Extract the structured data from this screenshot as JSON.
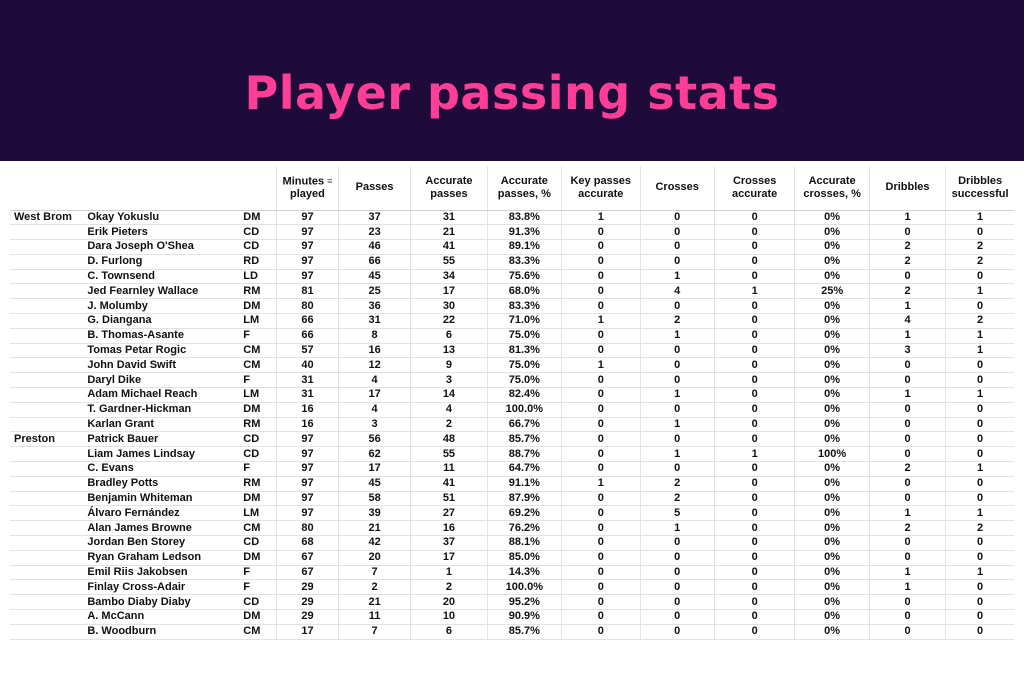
{
  "title": "Player passing stats",
  "columns": [
    {
      "key": "minutes",
      "label_lines": [
        "Minutes",
        "played"
      ],
      "icon": "sort-icon"
    },
    {
      "key": "passes",
      "label_lines": [
        "Passes"
      ]
    },
    {
      "key": "accurate_passes",
      "label_lines": [
        "Accurate",
        "passes"
      ]
    },
    {
      "key": "accurate_passes_pct",
      "label_lines": [
        "Accurate",
        "passes, %"
      ]
    },
    {
      "key": "key_passes_accurate",
      "label_lines": [
        "Key passes",
        "accurate"
      ]
    },
    {
      "key": "crosses",
      "label_lines": [
        "Crosses"
      ]
    },
    {
      "key": "crosses_accurate",
      "label_lines": [
        "Crosses",
        "accurate"
      ]
    },
    {
      "key": "accurate_crosses_pct",
      "label_lines": [
        "Accurate",
        "crosses, %"
      ]
    },
    {
      "key": "dribbles",
      "label_lines": [
        "Dribbles"
      ]
    },
    {
      "key": "dribbles_successful",
      "label_lines": [
        "Dribbles",
        "successful"
      ]
    }
  ],
  "teams": [
    {
      "name": "West Brom",
      "players": [
        {
          "name": "Okay Yokuslu",
          "pos": "DM",
          "stats": [
            "97",
            "37",
            "31",
            "83.8%",
            "1",
            "0",
            "0",
            "0%",
            "1",
            "1"
          ]
        },
        {
          "name": "Erik Pieters",
          "pos": "CD",
          "stats": [
            "97",
            "23",
            "21",
            "91.3%",
            "0",
            "0",
            "0",
            "0%",
            "0",
            "0"
          ]
        },
        {
          "name": "Dara Joseph O'Shea",
          "pos": "CD",
          "stats": [
            "97",
            "46",
            "41",
            "89.1%",
            "0",
            "0",
            "0",
            "0%",
            "2",
            "2"
          ]
        },
        {
          "name": "D. Furlong",
          "pos": "RD",
          "stats": [
            "97",
            "66",
            "55",
            "83.3%",
            "0",
            "0",
            "0",
            "0%",
            "2",
            "2"
          ]
        },
        {
          "name": "C. Townsend",
          "pos": "LD",
          "stats": [
            "97",
            "45",
            "34",
            "75.6%",
            "0",
            "1",
            "0",
            "0%",
            "0",
            "0"
          ]
        },
        {
          "name": "Jed Fearnley Wallace",
          "pos": "RM",
          "stats": [
            "81",
            "25",
            "17",
            "68.0%",
            "0",
            "4",
            "1",
            "25%",
            "2",
            "1"
          ]
        },
        {
          "name": "J. Molumby",
          "pos": "DM",
          "stats": [
            "80",
            "36",
            "30",
            "83.3%",
            "0",
            "0",
            "0",
            "0%",
            "1",
            "0"
          ]
        },
        {
          "name": "G. Diangana",
          "pos": "LM",
          "stats": [
            "66",
            "31",
            "22",
            "71.0%",
            "1",
            "2",
            "0",
            "0%",
            "4",
            "2"
          ]
        },
        {
          "name": "B. Thomas-Asante",
          "pos": "F",
          "stats": [
            "66",
            "8",
            "6",
            "75.0%",
            "0",
            "1",
            "0",
            "0%",
            "1",
            "1"
          ]
        },
        {
          "name": "Tomas Petar Rogic",
          "pos": "CM",
          "stats": [
            "57",
            "16",
            "13",
            "81.3%",
            "0",
            "0",
            "0",
            "0%",
            "3",
            "1"
          ]
        },
        {
          "name": "John David Swift",
          "pos": "CM",
          "stats": [
            "40",
            "12",
            "9",
            "75.0%",
            "1",
            "0",
            "0",
            "0%",
            "0",
            "0"
          ]
        },
        {
          "name": "Daryl Dike",
          "pos": "F",
          "stats": [
            "31",
            "4",
            "3",
            "75.0%",
            "0",
            "0",
            "0",
            "0%",
            "0",
            "0"
          ]
        },
        {
          "name": "Adam Michael Reach",
          "pos": "LM",
          "stats": [
            "31",
            "17",
            "14",
            "82.4%",
            "0",
            "1",
            "0",
            "0%",
            "1",
            "1"
          ]
        },
        {
          "name": "T. Gardner-Hickman",
          "pos": "DM",
          "stats": [
            "16",
            "4",
            "4",
            "100.0%",
            "0",
            "0",
            "0",
            "0%",
            "0",
            "0"
          ]
        },
        {
          "name": "Karlan Grant",
          "pos": "RM",
          "stats": [
            "16",
            "3",
            "2",
            "66.7%",
            "0",
            "1",
            "0",
            "0%",
            "0",
            "0"
          ]
        }
      ]
    },
    {
      "name": "Preston",
      "players": [
        {
          "name": "Patrick Bauer",
          "pos": "CD",
          "stats": [
            "97",
            "56",
            "48",
            "85.7%",
            "0",
            "0",
            "0",
            "0%",
            "0",
            "0"
          ]
        },
        {
          "name": "Liam James Lindsay",
          "pos": "CD",
          "stats": [
            "97",
            "62",
            "55",
            "88.7%",
            "0",
            "1",
            "1",
            "100%",
            "0",
            "0"
          ]
        },
        {
          "name": "C. Evans",
          "pos": "F",
          "stats": [
            "97",
            "17",
            "11",
            "64.7%",
            "0",
            "0",
            "0",
            "0%",
            "2",
            "1"
          ]
        },
        {
          "name": "Bradley Potts",
          "pos": "RM",
          "stats": [
            "97",
            "45",
            "41",
            "91.1%",
            "1",
            "2",
            "0",
            "0%",
            "0",
            "0"
          ]
        },
        {
          "name": "Benjamin Whiteman",
          "pos": "DM",
          "stats": [
            "97",
            "58",
            "51",
            "87.9%",
            "0",
            "2",
            "0",
            "0%",
            "0",
            "0"
          ]
        },
        {
          "name": "Álvaro Fernández",
          "pos": "LM",
          "stats": [
            "97",
            "39",
            "27",
            "69.2%",
            "0",
            "5",
            "0",
            "0%",
            "1",
            "1"
          ]
        },
        {
          "name": "Alan James Browne",
          "pos": "CM",
          "stats": [
            "80",
            "21",
            "16",
            "76.2%",
            "0",
            "1",
            "0",
            "0%",
            "2",
            "2"
          ]
        },
        {
          "name": "Jordan Ben Storey",
          "pos": "CD",
          "stats": [
            "68",
            "42",
            "37",
            "88.1%",
            "0",
            "0",
            "0",
            "0%",
            "0",
            "0"
          ]
        },
        {
          "name": "Ryan Graham Ledson",
          "pos": "DM",
          "stats": [
            "67",
            "20",
            "17",
            "85.0%",
            "0",
            "0",
            "0",
            "0%",
            "0",
            "0"
          ]
        },
        {
          "name": "Emil Riis Jakobsen",
          "pos": "F",
          "stats": [
            "67",
            "7",
            "1",
            "14.3%",
            "0",
            "0",
            "0",
            "0%",
            "1",
            "1"
          ]
        },
        {
          "name": "Finlay Cross-Adair",
          "pos": "F",
          "stats": [
            "29",
            "2",
            "2",
            "100.0%",
            "0",
            "0",
            "0",
            "0%",
            "1",
            "0"
          ]
        },
        {
          "name": "Bambo Diaby Diaby",
          "pos": "CD",
          "stats": [
            "29",
            "21",
            "20",
            "95.2%",
            "0",
            "0",
            "0",
            "0%",
            "0",
            "0"
          ]
        },
        {
          "name": "A. McCann",
          "pos": "DM",
          "stats": [
            "29",
            "11",
            "10",
            "90.9%",
            "0",
            "0",
            "0",
            "0%",
            "0",
            "0"
          ]
        },
        {
          "name": "B. Woodburn",
          "pos": "CM",
          "stats": [
            "17",
            "7",
            "6",
            "85.7%",
            "0",
            "0",
            "0",
            "0%",
            "0",
            "0"
          ]
        }
      ]
    }
  ]
}
